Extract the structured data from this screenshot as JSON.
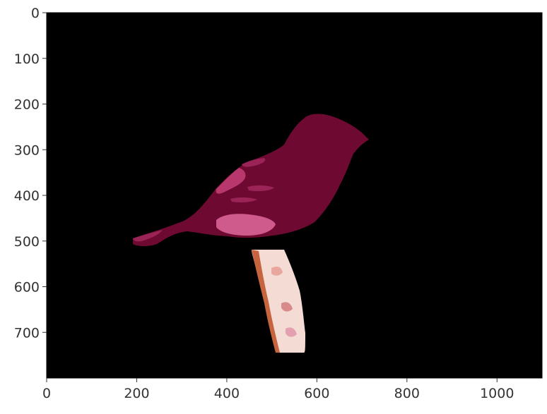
{
  "figure": {
    "background": "#ffffff",
    "plot_background": "#000000",
    "axis_color": "#333333",
    "subject_colors": {
      "bird_body": "#6e0a32",
      "bird_wing_highlight": "#b8386e",
      "bird_belly_patch": "#cf5a8c",
      "perch": "#f4dcd4"
    }
  },
  "image_axes": {
    "x_range": [
      0,
      1100
    ],
    "y_range": [
      0,
      800
    ],
    "y_inverted": true,
    "x_ticks": [
      0,
      200,
      400,
      600,
      800,
      1000
    ],
    "y_ticks": [
      0,
      100,
      200,
      300,
      400,
      500,
      600,
      700
    ],
    "x_tick_labels": [
      "0",
      "200",
      "400",
      "600",
      "800",
      "1000"
    ],
    "y_tick_labels": [
      "0",
      "100",
      "200",
      "300",
      "400",
      "500",
      "600",
      "700"
    ]
  }
}
